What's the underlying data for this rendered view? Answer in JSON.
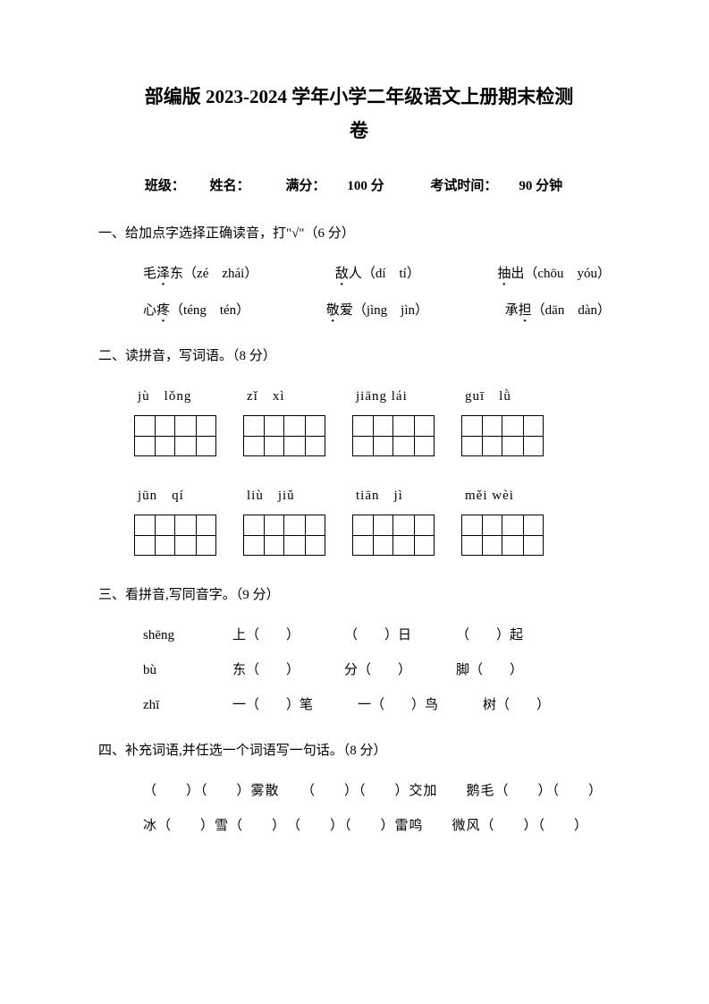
{
  "title_line1": "部编版 2023-2024 学年小学二年级语文上册期末检测",
  "title_line2": "卷",
  "info": {
    "class_label": "班级：",
    "name_label": "姓名：",
    "full_score_label": "满分：",
    "full_score_value": "100 分",
    "time_label": "考试时间：",
    "time_value": "90 分钟"
  },
  "q1": {
    "title": "一、给加点字选择正确读音，打\"√\"（6 分）",
    "items": [
      {
        "pre": "毛",
        "dot": "泽",
        "post": "东（zé　zhái）"
      },
      {
        "pre": "",
        "dot": "敌",
        "post": "人（dí　tí）"
      },
      {
        "pre": "",
        "dot": "抽",
        "post": "出（chōu　yóu）"
      },
      {
        "pre": "心",
        "dot": "疼",
        "post": "（téng　tén）"
      },
      {
        "pre": "",
        "dot": "敬",
        "post": "爱（jìng　jìn）"
      },
      {
        "pre": "承",
        "dot": "担",
        "post": "（dān　dàn）"
      }
    ]
  },
  "q2": {
    "title": "二、读拼音，写词语。（8 分）",
    "rows": [
      [
        "jù　lǒng",
        "zǐ　xì",
        "jiāng lái",
        "guī　lǜ"
      ],
      [
        "jūn　qí",
        "liù　jiǔ",
        "tiān　jì",
        "měi wèi"
      ]
    ]
  },
  "q3": {
    "title": "三、看拼音,写同音字。（9 分）",
    "rows": [
      {
        "pinyin": "shēng",
        "items": [
          "上（　　）",
          "（　　）日",
          "（　　）起"
        ]
      },
      {
        "pinyin": "bù",
        "items": [
          "东（　　）",
          "分（　　）",
          "脚（　　）"
        ]
      },
      {
        "pinyin": "zhī",
        "items": [
          "一（　　）笔",
          "一（　　）鸟",
          "树（　　）"
        ]
      }
    ]
  },
  "q4": {
    "title": "四、补充词语,并任选一个词语写一句话。（8 分）",
    "rows": [
      "（　　）（　　）雾散　　（　　）（　　）交加　　鹅毛（　　）（　　）",
      "冰（　　）雪（　　）　（　　）（　　）雷鸣　　微风（　　）（　　）"
    ]
  }
}
